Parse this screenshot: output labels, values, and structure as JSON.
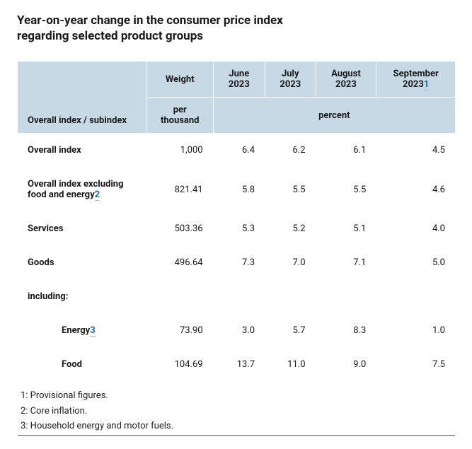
{
  "title": "Year-on-year change in the consumer price index regarding selected product groups",
  "table": {
    "header": {
      "rowhead": "Overall index / subindex",
      "weight": "Weight",
      "months": [
        "June 2023",
        "July 2023",
        "August 2023",
        "September 2023"
      ],
      "september_footnote": "1",
      "unit_weight": "per thousand",
      "unit_percent": "percent"
    },
    "rows": [
      {
        "label": "Overall index",
        "weight": "1,000",
        "values": [
          "6.4",
          "6.2",
          "6.1",
          "4.5"
        ]
      },
      {
        "label": "Overall index excluding food and energy",
        "footnote": "2",
        "weight": "821.41",
        "values": [
          "5.8",
          "5.5",
          "5.5",
          "4.6"
        ]
      },
      {
        "label": "Services",
        "weight": "503.36",
        "values": [
          "5.3",
          "5.2",
          "5.1",
          "4.0"
        ]
      },
      {
        "label": "Goods",
        "weight": "496.64",
        "values": [
          "7.3",
          "7.0",
          "7.1",
          "5.0"
        ]
      }
    ],
    "including_label": "including:",
    "subrows": [
      {
        "label": "Energy",
        "footnote": "3",
        "weight": "73.90",
        "values": [
          "3.0",
          "5.7",
          "8.3",
          "1.0"
        ]
      },
      {
        "label": "Food",
        "weight": "104.69",
        "values": [
          "13.7",
          "11.0",
          "9.0",
          "7.5"
        ]
      }
    ],
    "footnotes": [
      "1: Provisional figures.",
      "2: Core inflation.",
      "3: Household energy and motor fuels."
    ]
  },
  "colors": {
    "header_bg": "#c8d9e6",
    "link": "#1a6daf",
    "border": "#d0d0d0",
    "footer_rule": "#7a7a7a"
  }
}
